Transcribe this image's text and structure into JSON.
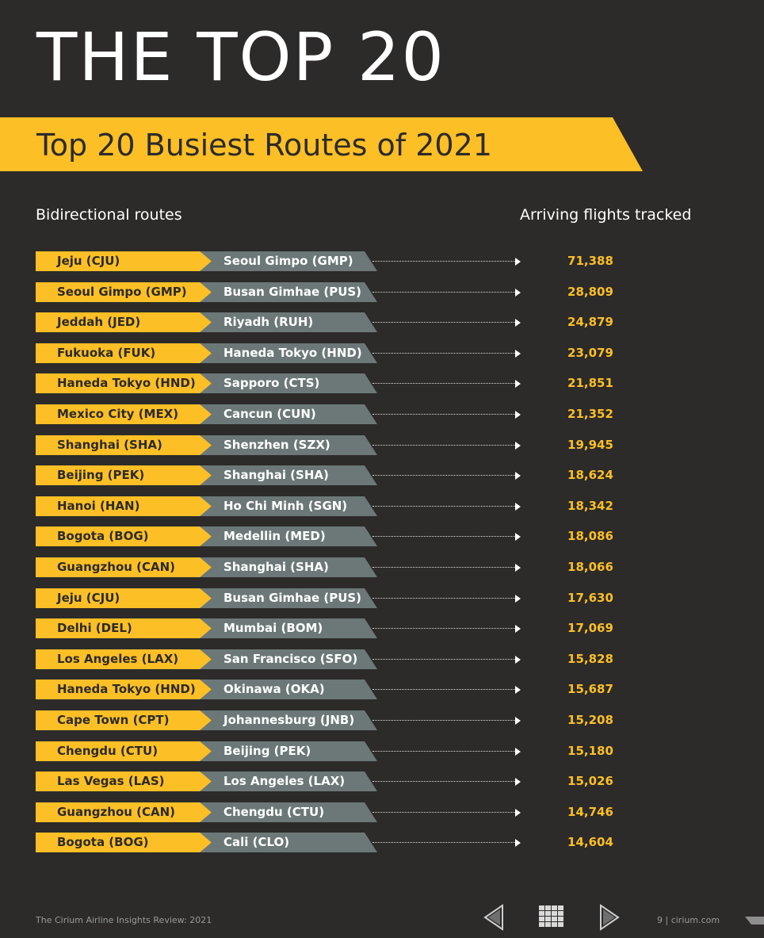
{
  "page_title": "THE TOP 20",
  "banner_title": "Top 20 Busiest Routes of 2021",
  "headers": {
    "left": "Bidirectional routes",
    "right": "Arriving flights tracked"
  },
  "colors": {
    "accent_yellow": "#fcbf26",
    "route_grey": "#6c7878",
    "background": "#2c2b2a"
  },
  "routes": [
    {
      "from": "Jeju (CJU)",
      "to": "Seoul Gimpo (GMP)",
      "count": "71,388"
    },
    {
      "from": "Seoul Gimpo (GMP)",
      "to": "Busan Gimhae (PUS)",
      "count": "28,809"
    },
    {
      "from": "Jeddah (JED)",
      "to": "Riyadh (RUH)",
      "count": "24,879"
    },
    {
      "from": "Fukuoka (FUK)",
      "to": "Haneda Tokyo (HND)",
      "count": "23,079"
    },
    {
      "from": "Haneda Tokyo (HND)",
      "to": "Sapporo (CTS)",
      "count": "21,851"
    },
    {
      "from": "Mexico City (MEX)",
      "to": "Cancun (CUN)",
      "count": "21,352"
    },
    {
      "from": "Shanghai (SHA)",
      "to": "Shenzhen (SZX)",
      "count": "19,945"
    },
    {
      "from": "Beijing (PEK)",
      "to": "Shanghai (SHA)",
      "count": "18,624"
    },
    {
      "from": "Hanoi (HAN)",
      "to": "Ho Chi Minh (SGN)",
      "count": "18,342"
    },
    {
      "from": "Bogota (BOG)",
      "to": "Medellin (MED)",
      "count": "18,086"
    },
    {
      "from": "Guangzhou (CAN)",
      "to": "Shanghai (SHA)",
      "count": "18,066"
    },
    {
      "from": "Jeju (CJU)",
      "to": "Busan Gimhae (PUS)",
      "count": "17,630"
    },
    {
      "from": "Delhi (DEL)",
      "to": "Mumbai (BOM)",
      "count": "17,069"
    },
    {
      "from": "Los Angeles (LAX)",
      "to": "San Francisco (SFO)",
      "count": "15,828"
    },
    {
      "from": "Haneda Tokyo (HND)",
      "to": "Okinawa (OKA)",
      "count": "15,687"
    },
    {
      "from": "Cape Town (CPT)",
      "to": "Johannesburg (JNB)",
      "count": "15,208"
    },
    {
      "from": "Chengdu (CTU)",
      "to": "Beijing (PEK)",
      "count": "15,180"
    },
    {
      "from": "Las Vegas (LAS)",
      "to": "Los Angeles (LAX)",
      "count": "15,026"
    },
    {
      "from": "Guangzhou (CAN)",
      "to": "Chengdu (CTU)",
      "count": "14,746"
    },
    {
      "from": "Bogota (BOG)",
      "to": "Cali (CLO)",
      "count": "14,604"
    }
  ],
  "footer": {
    "publication": "The Cirium Airline Insights Review: 2021",
    "page": "9 | cirium.com",
    "icons": {
      "prev": "previous-page-icon",
      "grid": "grid-menu-icon",
      "next": "next-page-icon"
    }
  }
}
